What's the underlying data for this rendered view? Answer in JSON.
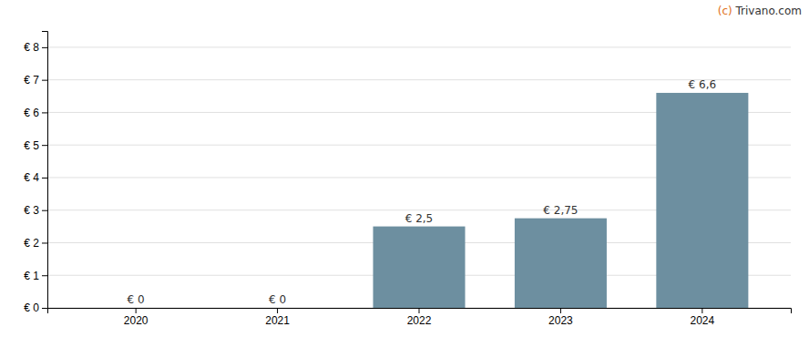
{
  "chart_data": {
    "type": "bar",
    "categories": [
      "2020",
      "2021",
      "2022",
      "2023",
      "2024"
    ],
    "values": [
      0,
      0,
      2.5,
      2.75,
      6.6
    ],
    "value_labels": [
      "€ 0",
      "€ 0",
      "€ 2,5",
      "€ 2,75",
      "€ 6,6"
    ],
    "data_labels": true,
    "color": "#6d8fa0",
    "ylim": [
      0,
      8.5
    ],
    "yticks": [
      {
        "value": 0,
        "label": "€ 0"
      },
      {
        "value": 1,
        "label": "€ 1"
      },
      {
        "value": 2,
        "label": "€ 2"
      },
      {
        "value": 3,
        "label": "€ 3"
      },
      {
        "value": 4,
        "label": "€ 4"
      },
      {
        "value": 5,
        "label": "€ 5"
      },
      {
        "value": 6,
        "label": "€ 6"
      },
      {
        "value": 7,
        "label": "€ 7"
      },
      {
        "value": 8,
        "label": "€ 8"
      }
    ],
    "grid": true,
    "annotations": [
      {
        "text": "(c) ",
        "color": "#e07020"
      },
      {
        "text": "Trivano.com",
        "color": "#333333"
      }
    ]
  }
}
